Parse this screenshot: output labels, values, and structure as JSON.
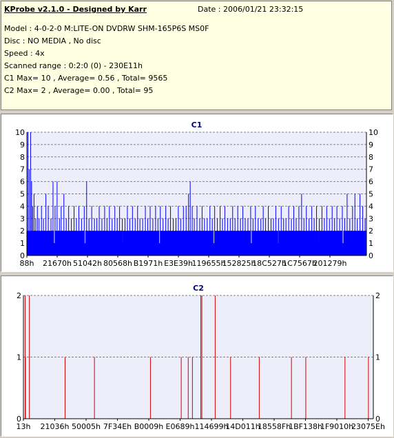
{
  "window": {
    "title": "KProbe v2.1.0 - Designed by Karr",
    "date": "Date : 2006/01/21 23:32:15"
  },
  "info": {
    "model": "Model : 4-0-2-0 M:LITE-ON DVDRW SHM-165P6S MS0F",
    "disc": "Disc : NO MEDIA , No disc",
    "speed": "Speed : 4x",
    "range": "Scanned range : 0:2:0 (0) - 230E11h",
    "c1": "C1 Max= 10 , Average= 0.56 , Total= 9565",
    "c2": "C2 Max= 2 , Average= 0.00 , Total= 95"
  },
  "colors": {
    "background": "#d4d0c8",
    "info_bg": "#ffffe1",
    "plot_bg": "#eeeefa",
    "c1_bar": "#0000ff",
    "c2_bar": "#cc0000",
    "grid": "#808080",
    "chart_title": "#000080"
  },
  "chart_data": [
    {
      "type": "bar",
      "title": "C1",
      "ylim": [
        0,
        10
      ],
      "yticks": [
        0,
        1,
        2,
        3,
        4,
        5,
        6,
        7,
        8,
        9,
        10
      ],
      "xtick_labels": [
        "88h",
        "21670h",
        "51042h",
        "80568h",
        "B1971h",
        "E3E39h",
        "119655h",
        "152825h",
        "18C527h",
        "1C7567h",
        "201279h"
      ],
      "grid": true,
      "baseline_value": 2,
      "spikes": [
        {
          "x": 0.002,
          "v": 10
        },
        {
          "x": 0.006,
          "v": 7
        },
        {
          "x": 0.01,
          "v": 10
        },
        {
          "x": 0.013,
          "v": 6
        },
        {
          "x": 0.016,
          "v": 4
        },
        {
          "x": 0.02,
          "v": 5
        },
        {
          "x": 0.025,
          "v": 3
        },
        {
          "x": 0.03,
          "v": 4
        },
        {
          "x": 0.035,
          "v": 3
        },
        {
          "x": 0.042,
          "v": 4
        },
        {
          "x": 0.048,
          "v": 3
        },
        {
          "x": 0.055,
          "v": 5
        },
        {
          "x": 0.062,
          "v": 4
        },
        {
          "x": 0.07,
          "v": 3
        },
        {
          "x": 0.076,
          "v": 6
        },
        {
          "x": 0.082,
          "v": 4
        },
        {
          "x": 0.088,
          "v": 6
        },
        {
          "x": 0.095,
          "v": 3
        },
        {
          "x": 0.1,
          "v": 4
        },
        {
          "x": 0.108,
          "v": 5
        },
        {
          "x": 0.115,
          "v": 3
        },
        {
          "x": 0.122,
          "v": 4
        },
        {
          "x": 0.13,
          "v": 3
        },
        {
          "x": 0.138,
          "v": 4
        },
        {
          "x": 0.145,
          "v": 3
        },
        {
          "x": 0.152,
          "v": 4
        },
        {
          "x": 0.16,
          "v": 3
        },
        {
          "x": 0.168,
          "v": 4
        },
        {
          "x": 0.175,
          "v": 6
        },
        {
          "x": 0.182,
          "v": 3
        },
        {
          "x": 0.19,
          "v": 4
        },
        {
          "x": 0.198,
          "v": 3
        },
        {
          "x": 0.205,
          "v": 3
        },
        {
          "x": 0.212,
          "v": 4
        },
        {
          "x": 0.22,
          "v": 3
        },
        {
          "x": 0.228,
          "v": 4
        },
        {
          "x": 0.235,
          "v": 3
        },
        {
          "x": 0.242,
          "v": 4
        },
        {
          "x": 0.25,
          "v": 3
        },
        {
          "x": 0.258,
          "v": 4
        },
        {
          "x": 0.265,
          "v": 3
        },
        {
          "x": 0.272,
          "v": 4
        },
        {
          "x": 0.28,
          "v": 3
        },
        {
          "x": 0.288,
          "v": 3
        },
        {
          "x": 0.295,
          "v": 4
        },
        {
          "x": 0.302,
          "v": 3
        },
        {
          "x": 0.31,
          "v": 4
        },
        {
          "x": 0.318,
          "v": 3
        },
        {
          "x": 0.325,
          "v": 4
        },
        {
          "x": 0.332,
          "v": 3
        },
        {
          "x": 0.34,
          "v": 3
        },
        {
          "x": 0.348,
          "v": 4
        },
        {
          "x": 0.355,
          "v": 3
        },
        {
          "x": 0.362,
          "v": 4
        },
        {
          "x": 0.37,
          "v": 3
        },
        {
          "x": 0.378,
          "v": 4
        },
        {
          "x": 0.385,
          "v": 3
        },
        {
          "x": 0.392,
          "v": 4
        },
        {
          "x": 0.4,
          "v": 3
        },
        {
          "x": 0.408,
          "v": 4
        },
        {
          "x": 0.415,
          "v": 3
        },
        {
          "x": 0.422,
          "v": 4
        },
        {
          "x": 0.43,
          "v": 3
        },
        {
          "x": 0.438,
          "v": 3
        },
        {
          "x": 0.445,
          "v": 4
        },
        {
          "x": 0.452,
          "v": 3
        },
        {
          "x": 0.46,
          "v": 4
        },
        {
          "x": 0.468,
          "v": 4
        },
        {
          "x": 0.475,
          "v": 5
        },
        {
          "x": 0.48,
          "v": 6
        },
        {
          "x": 0.486,
          "v": 4
        },
        {
          "x": 0.492,
          "v": 3
        },
        {
          "x": 0.5,
          "v": 4
        },
        {
          "x": 0.508,
          "v": 3
        },
        {
          "x": 0.515,
          "v": 4
        },
        {
          "x": 0.522,
          "v": 3
        },
        {
          "x": 0.53,
          "v": 3
        },
        {
          "x": 0.538,
          "v": 4
        },
        {
          "x": 0.545,
          "v": 3
        },
        {
          "x": 0.552,
          "v": 4
        },
        {
          "x": 0.56,
          "v": 3
        },
        {
          "x": 0.568,
          "v": 4
        },
        {
          "x": 0.575,
          "v": 3
        },
        {
          "x": 0.582,
          "v": 4
        },
        {
          "x": 0.59,
          "v": 3
        },
        {
          "x": 0.598,
          "v": 3
        },
        {
          "x": 0.605,
          "v": 4
        },
        {
          "x": 0.612,
          "v": 3
        },
        {
          "x": 0.62,
          "v": 4
        },
        {
          "x": 0.628,
          "v": 3
        },
        {
          "x": 0.635,
          "v": 4
        },
        {
          "x": 0.642,
          "v": 3
        },
        {
          "x": 0.65,
          "v": 3
        },
        {
          "x": 0.658,
          "v": 4
        },
        {
          "x": 0.665,
          "v": 3
        },
        {
          "x": 0.672,
          "v": 4
        },
        {
          "x": 0.68,
          "v": 3
        },
        {
          "x": 0.688,
          "v": 3
        },
        {
          "x": 0.695,
          "v": 4
        },
        {
          "x": 0.702,
          "v": 3
        },
        {
          "x": 0.71,
          "v": 4
        },
        {
          "x": 0.718,
          "v": 3
        },
        {
          "x": 0.725,
          "v": 3
        },
        {
          "x": 0.732,
          "v": 4
        },
        {
          "x": 0.74,
          "v": 3
        },
        {
          "x": 0.748,
          "v": 4
        },
        {
          "x": 0.755,
          "v": 3
        },
        {
          "x": 0.762,
          "v": 3
        },
        {
          "x": 0.77,
          "v": 4
        },
        {
          "x": 0.778,
          "v": 3
        },
        {
          "x": 0.785,
          "v": 4
        },
        {
          "x": 0.792,
          "v": 3
        },
        {
          "x": 0.8,
          "v": 4
        },
        {
          "x": 0.808,
          "v": 5
        },
        {
          "x": 0.815,
          "v": 3
        },
        {
          "x": 0.822,
          "v": 4
        },
        {
          "x": 0.83,
          "v": 3
        },
        {
          "x": 0.838,
          "v": 4
        },
        {
          "x": 0.845,
          "v": 3
        },
        {
          "x": 0.852,
          "v": 4
        },
        {
          "x": 0.86,
          "v": 3
        },
        {
          "x": 0.868,
          "v": 4
        },
        {
          "x": 0.875,
          "v": 3
        },
        {
          "x": 0.882,
          "v": 4
        },
        {
          "x": 0.89,
          "v": 3
        },
        {
          "x": 0.898,
          "v": 4
        },
        {
          "x": 0.905,
          "v": 3
        },
        {
          "x": 0.912,
          "v": 4
        },
        {
          "x": 0.92,
          "v": 3
        },
        {
          "x": 0.928,
          "v": 4
        },
        {
          "x": 0.935,
          "v": 3
        },
        {
          "x": 0.942,
          "v": 5
        },
        {
          "x": 0.95,
          "v": 3
        },
        {
          "x": 0.958,
          "v": 4
        },
        {
          "x": 0.965,
          "v": 5
        },
        {
          "x": 0.972,
          "v": 3
        },
        {
          "x": 0.98,
          "v": 5
        },
        {
          "x": 0.988,
          "v": 4
        },
        {
          "x": 0.995,
          "v": 3
        }
      ],
      "dips": [
        0.08,
        0.17,
        0.28,
        0.39,
        0.43,
        0.55,
        0.66,
        0.74,
        0.86,
        0.93
      ]
    },
    {
      "type": "bar",
      "title": "C2",
      "ylim": [
        0,
        2
      ],
      "yticks": [
        0,
        1,
        2
      ],
      "xtick_labels": [
        "13h",
        "21036h",
        "50005h",
        "7F34Eh",
        "B0009h",
        "E0689h",
        "114699h",
        "14D011h",
        "18558Fh",
        "1BF138h",
        "1F9010h",
        "23075Eh"
      ],
      "grid": true,
      "bars": [
        {
          "x": 0.004,
          "v": 2
        },
        {
          "x": 0.016,
          "v": 2
        },
        {
          "x": 0.005,
          "v": 1
        },
        {
          "x": 0.118,
          "v": 1
        },
        {
          "x": 0.202,
          "v": 1
        },
        {
          "x": 0.362,
          "v": 1
        },
        {
          "x": 0.45,
          "v": 1
        },
        {
          "x": 0.47,
          "v": 1
        },
        {
          "x": 0.482,
          "v": 1
        },
        {
          "x": 0.506,
          "v": 2
        },
        {
          "x": 0.509,
          "v": 2
        },
        {
          "x": 0.547,
          "v": 2
        },
        {
          "x": 0.591,
          "v": 1
        },
        {
          "x": 0.673,
          "v": 1
        },
        {
          "x": 0.765,
          "v": 1
        },
        {
          "x": 0.806,
          "v": 1
        },
        {
          "x": 0.918,
          "v": 1
        },
        {
          "x": 0.985,
          "v": 1
        }
      ]
    }
  ]
}
